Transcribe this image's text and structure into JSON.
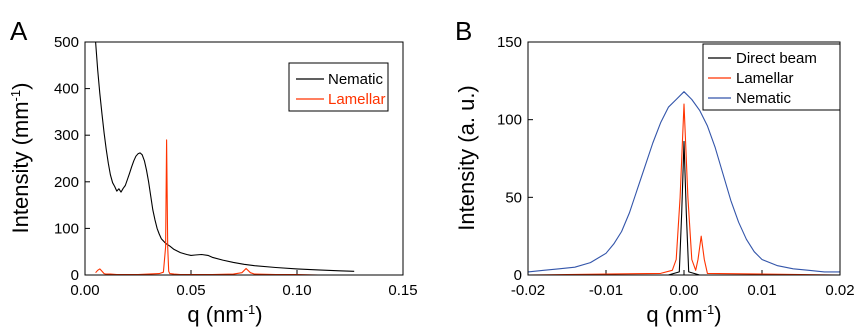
{
  "chart_data": [
    {
      "panel": "A",
      "type": "line",
      "xlabel": "q (nm",
      "xlabel_sup": "-1",
      "xlabel_end": ")",
      "ylabel": "Intensity (mm",
      "ylabel_sup": "-1",
      "ylabel_end": ")",
      "xlim": [
        0.0,
        0.15
      ],
      "ylim": [
        0,
        500
      ],
      "xticks": [
        0.0,
        0.05,
        0.1,
        0.15
      ],
      "xtick_labels": [
        "0.00",
        "0.05",
        "0.10",
        "0.15"
      ],
      "yticks": [
        0,
        100,
        200,
        300,
        400,
        500
      ],
      "ytick_labels": [
        "0",
        "100",
        "200",
        "300",
        "400",
        "500"
      ],
      "legend": "top-right",
      "grid": false,
      "series": [
        {
          "name": "Nematic",
          "color": "#000000",
          "x": [
            0.005,
            0.006,
            0.007,
            0.008,
            0.009,
            0.01,
            0.011,
            0.012,
            0.013,
            0.014,
            0.015,
            0.016,
            0.017,
            0.018,
            0.019,
            0.02,
            0.021,
            0.022,
            0.023,
            0.024,
            0.025,
            0.026,
            0.027,
            0.028,
            0.029,
            0.03,
            0.031,
            0.032,
            0.033,
            0.034,
            0.035,
            0.036,
            0.038,
            0.04,
            0.042,
            0.045,
            0.048,
            0.05,
            0.052,
            0.055,
            0.058,
            0.06,
            0.065,
            0.07,
            0.075,
            0.08,
            0.09,
            0.1,
            0.11,
            0.12,
            0.127
          ],
          "y": [
            500,
            440,
            390,
            345,
            305,
            270,
            240,
            215,
            198,
            190,
            180,
            185,
            178,
            186,
            192,
            205,
            218,
            232,
            245,
            255,
            260,
            262,
            258,
            245,
            225,
            200,
            170,
            140,
            118,
            100,
            88,
            78,
            68,
            62,
            55,
            48,
            44,
            42,
            43,
            44,
            42,
            38,
            32,
            27,
            23,
            20,
            16,
            13,
            11,
            9,
            8
          ]
        },
        {
          "name": "Lamellar",
          "color": "#ff3300",
          "x": [
            0.005,
            0.006,
            0.007,
            0.008,
            0.009,
            0.01,
            0.012,
            0.015,
            0.02,
            0.025,
            0.03,
            0.035,
            0.037,
            0.038,
            0.0385,
            0.039,
            0.0395,
            0.04,
            0.042,
            0.045,
            0.05,
            0.06,
            0.07,
            0.074,
            0.076,
            0.078,
            0.08,
            0.09,
            0.1,
            0.11,
            0.12,
            0.127
          ],
          "y": [
            5,
            10,
            13,
            8,
            3,
            2,
            2,
            1,
            1,
            1,
            2,
            3,
            6,
            60,
            290,
            60,
            8,
            3,
            2,
            1,
            1,
            1,
            2,
            5,
            14,
            5,
            2,
            1,
            1,
            0,
            0,
            0
          ]
        }
      ]
    },
    {
      "panel": "B",
      "type": "line",
      "xlabel": "q (nm",
      "xlabel_sup": "-1",
      "xlabel_end": ")",
      "ylabel": "Intensity (a. u.)",
      "xlim": [
        -0.02,
        0.02
      ],
      "ylim": [
        0,
        150
      ],
      "xticks": [
        -0.02,
        -0.01,
        0.0,
        0.01,
        0.02
      ],
      "xtick_labels": [
        "-0.02",
        "-0.01",
        "0.00",
        "0.01",
        "0.02"
      ],
      "yticks": [
        0,
        50,
        100,
        150
      ],
      "ytick_labels": [
        "0",
        "50",
        "100",
        "150"
      ],
      "legend": "top-right",
      "grid": false,
      "series": [
        {
          "name": "Direct beam",
          "color": "#000000",
          "x": [
            -0.02,
            -0.002,
            -0.0006,
            -0.0003,
            0.0,
            0.0003,
            0.0006,
            0.002,
            0.02
          ],
          "y": [
            0,
            0,
            2,
            40,
            86,
            40,
            2,
            0,
            0
          ]
        },
        {
          "name": "Lamellar",
          "color": "#ff3300",
          "x": [
            -0.02,
            -0.003,
            -0.0015,
            -0.001,
            -0.0005,
            0.0,
            0.0005,
            0.001,
            0.0015,
            0.0018,
            0.0022,
            0.0026,
            0.003,
            0.02
          ],
          "y": [
            0,
            1,
            3,
            10,
            50,
            110,
            50,
            10,
            3,
            10,
            25,
            10,
            1,
            0
          ]
        },
        {
          "name": "Nematic",
          "color": "#3355aa",
          "x": [
            -0.02,
            -0.018,
            -0.016,
            -0.014,
            -0.012,
            -0.01,
            -0.009,
            -0.008,
            -0.007,
            -0.006,
            -0.005,
            -0.004,
            -0.003,
            -0.002,
            -0.001,
            0.0,
            0.001,
            0.002,
            0.003,
            0.004,
            0.005,
            0.006,
            0.007,
            0.008,
            0.009,
            0.01,
            0.012,
            0.014,
            0.016,
            0.018,
            0.02
          ],
          "y": [
            2,
            3,
            4,
            5,
            8,
            14,
            20,
            28,
            40,
            55,
            70,
            85,
            98,
            108,
            113,
            118,
            113,
            106,
            96,
            82,
            65,
            48,
            34,
            23,
            15,
            10,
            6,
            4,
            3,
            2,
            2
          ]
        }
      ]
    }
  ]
}
